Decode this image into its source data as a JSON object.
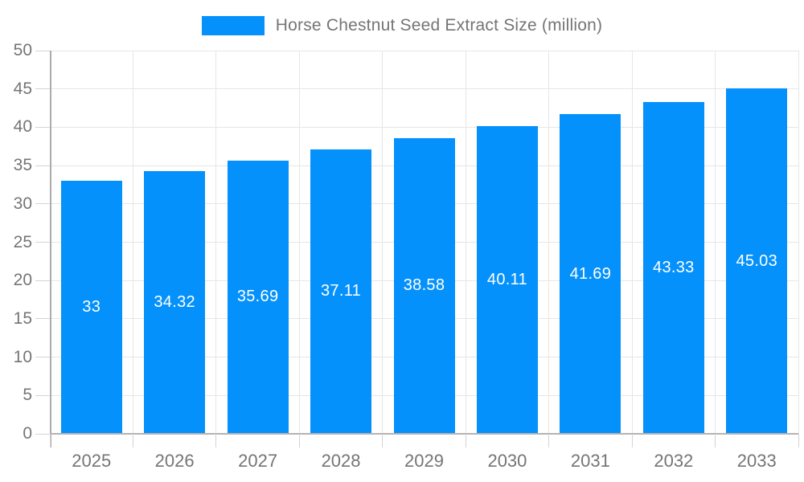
{
  "legend": {
    "label": "Horse Chestnut Seed Extract Size (million)"
  },
  "chart_data": {
    "type": "bar",
    "title": "Horse Chestnut Seed Extract Size (million)",
    "series_name": "Horse Chestnut Seed Extract Size (million)",
    "categories": [
      "2025",
      "2026",
      "2027",
      "2028",
      "2029",
      "2030",
      "2031",
      "2032",
      "2033"
    ],
    "values": [
      33,
      34.32,
      35.69,
      37.11,
      38.58,
      40.11,
      41.69,
      43.33,
      45.03
    ],
    "value_labels": [
      "33",
      "34.32",
      "35.69",
      "37.11",
      "38.58",
      "40.11",
      "41.69",
      "43.33",
      "45.03"
    ],
    "xlabel": "",
    "ylabel": "",
    "ylim": [
      0,
      50
    ],
    "ytick_step": 5,
    "ytick_labels": [
      "0",
      "5",
      "10",
      "15",
      "20",
      "25",
      "30",
      "35",
      "40",
      "45",
      "50"
    ],
    "grid": true,
    "legend_position": "top",
    "bar_color": "#0591fb",
    "bar_label_color": "#ffffff",
    "axis_text_color": "#757575",
    "grid_color": "#e6e6e6",
    "axis_line_color": "#b3b3b3"
  }
}
